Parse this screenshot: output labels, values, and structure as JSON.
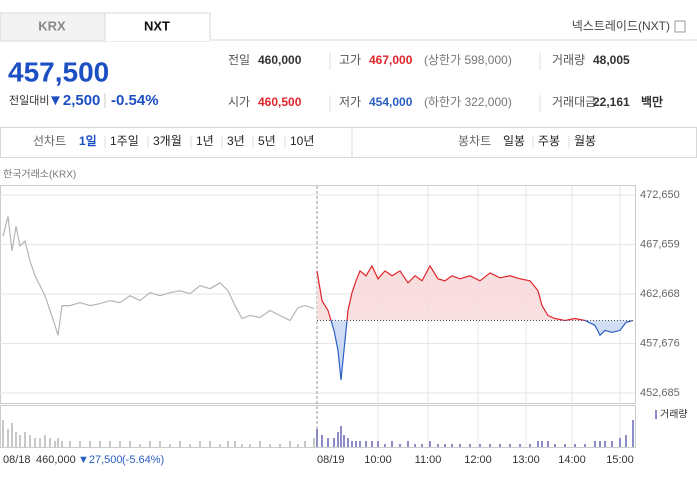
{
  "tabs": [
    "KRX",
    "NXT"
  ],
  "exchange": "넥스트레이드(NXT)",
  "quote": {
    "price": "457,500",
    "change_label": "전일대비",
    "change": "▼2,500",
    "change_pct": "-0.54%"
  },
  "stats": [
    {
      "label": "전일",
      "value": "460,000"
    },
    {
      "label": "고가",
      "value": "467,000",
      "note": "(상한가 598,000)"
    },
    {
      "label": "거래량",
      "value": "48,005"
    },
    {
      "label": "시가",
      "value": "460,500"
    },
    {
      "label": "저가",
      "value": "454,000",
      "note": "(하한가 322,000)"
    },
    {
      "label": "거래대금",
      "value": "22,161",
      "unit": "백만"
    }
  ],
  "line_periods": {
    "label": "선차트",
    "items": [
      "1일",
      "1주일",
      "3개월",
      "1년",
      "3년",
      "5년",
      "10년"
    ]
  },
  "candle_periods": {
    "label": "봉차트",
    "items": [
      "일봉",
      "주봉",
      "월봉"
    ]
  },
  "footer": {
    "date": "08/18",
    "close": "460,000",
    "change": "▼27,500",
    "change_pct": "(-5.64%)"
  },
  "chart_data": {
    "type": "line",
    "source": "한국거래소(KRX)",
    "volume_label": "거래량",
    "volume_color": "#8c8cc8",
    "xlim": [
      0,
      697
    ],
    "ylim": [
      452685,
      472650
    ],
    "baseline": 460000,
    "yticks": [
      {
        "value": 472650,
        "label": "472,650"
      },
      {
        "value": 467659,
        "label": "467,659"
      },
      {
        "value": 462668,
        "label": "462,668"
      },
      {
        "value": 457676,
        "label": "457,676"
      },
      {
        "value": 452685,
        "label": "452,685"
      }
    ],
    "xticks": [
      {
        "value": 317,
        "label": "08/19"
      },
      {
        "value": 378,
        "label": "10:00"
      },
      {
        "value": 428,
        "label": "11:00"
      },
      {
        "value": 478,
        "label": "12:00"
      },
      {
        "value": 526,
        "label": "13:00"
      },
      {
        "value": 572,
        "label": "14:00"
      },
      {
        "value": 620,
        "label": "15:00"
      }
    ],
    "series": [
      {
        "color": "#b4b4b4",
        "x": [
          3,
          8,
          12,
          16,
          20,
          25,
          30,
          35,
          40,
          45,
          50,
          55,
          58,
          62,
          70,
          80,
          90,
          100,
          110,
          120,
          130,
          140,
          150,
          160,
          170,
          180,
          190,
          200,
          210,
          220,
          228,
          235,
          242,
          250,
          260,
          270,
          280,
          290,
          298,
          305,
          314
        ],
        "values": [
          468500,
          470500,
          467000,
          469500,
          467500,
          468000,
          466000,
          464500,
          463500,
          462500,
          461000,
          459500,
          458500,
          461500,
          461500,
          461800,
          461500,
          461700,
          462000,
          461800,
          462500,
          462000,
          462800,
          462500,
          462800,
          463000,
          462700,
          463500,
          463200,
          463800,
          463000,
          461500,
          460200,
          460500,
          460300,
          461000,
          460500,
          460000,
          461300,
          461500,
          461200
        ],
        "volume": [
          9,
          6,
          8,
          5,
          4,
          5,
          4,
          3,
          3,
          4,
          3,
          2,
          3,
          2,
          2,
          2,
          2,
          2,
          2,
          2,
          2,
          1,
          2,
          2,
          1,
          2,
          1,
          2,
          2,
          1,
          2,
          2,
          1,
          1,
          2,
          1,
          1,
          2,
          1,
          2,
          3
        ]
      },
      {
        "color": "#e0252b",
        "down_color": "#2a5fc2",
        "x": [
          317,
          322,
          328,
          334,
          338,
          341,
          344,
          348,
          352,
          356,
          360,
          366,
          372,
          378,
          385,
          392,
          400,
          408,
          415,
          422,
          430,
          438,
          445,
          452,
          460,
          470,
          480,
          490,
          500,
          510,
          520,
          530,
          538,
          542,
          548,
          555,
          565,
          575,
          585,
          595,
          600,
          605,
          612,
          620,
          626,
          633
        ],
        "values": [
          465000,
          462000,
          461000,
          459000,
          457000,
          454000,
          457000,
          461000,
          462800,
          464000,
          465000,
          464500,
          465500,
          464200,
          465000,
          464500,
          465000,
          463800,
          464500,
          464000,
          465500,
          464200,
          464000,
          464500,
          464200,
          464500,
          464000,
          464800,
          464300,
          464500,
          464200,
          464000,
          463000,
          461500,
          460500,
          460200,
          460000,
          460200,
          460000,
          459500,
          458500,
          459000,
          458800,
          459000,
          459800,
          460000
        ],
        "volume": [
          6,
          4,
          3,
          3,
          5,
          7,
          4,
          3,
          2,
          2,
          2,
          2,
          2,
          2,
          1,
          2,
          1,
          2,
          1,
          1,
          2,
          1,
          1,
          1,
          1,
          1,
          1,
          1,
          1,
          1,
          1,
          1,
          2,
          2,
          2,
          1,
          1,
          1,
          1,
          2,
          2,
          2,
          2,
          3,
          4,
          9
        ]
      }
    ]
  }
}
